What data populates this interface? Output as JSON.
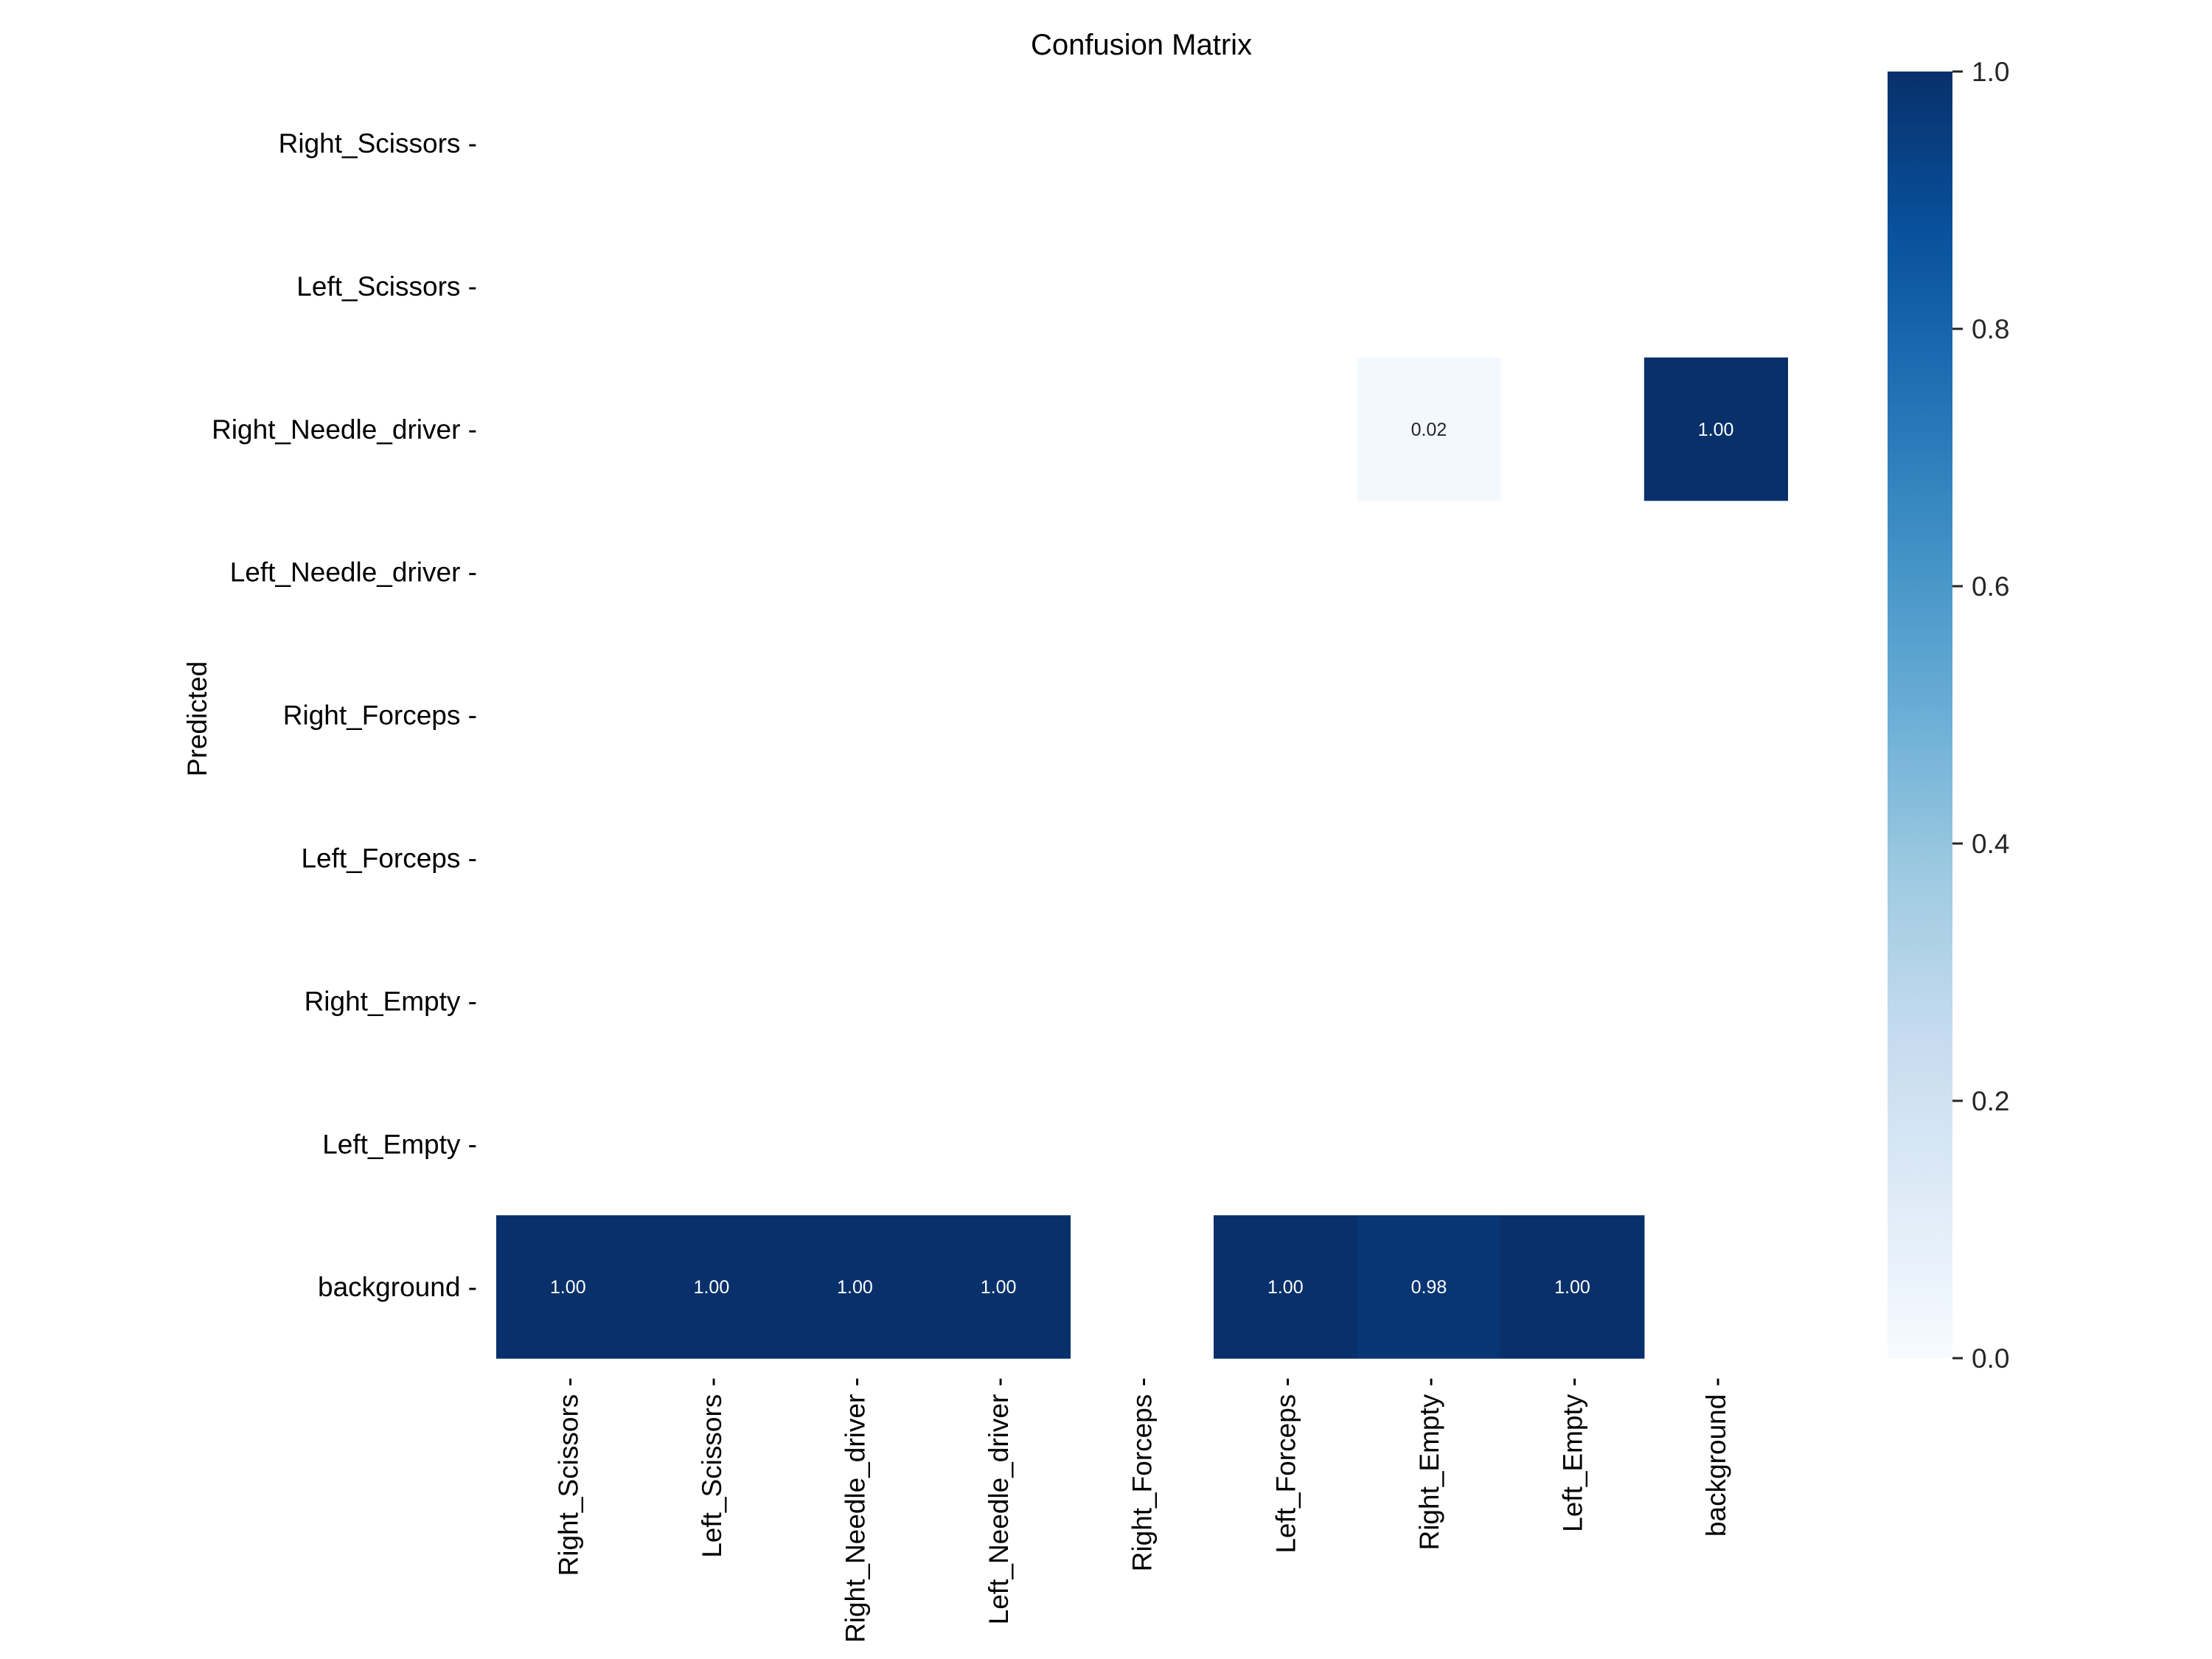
{
  "chart_data": {
    "type": "heatmap",
    "title": "Confusion Matrix",
    "ylabel": "Predicted",
    "xlabel": "",
    "x_categories": [
      "Right_Scissors",
      "Left_Scissors",
      "Right_Needle_driver",
      "Left_Needle_driver",
      "Right_Forceps",
      "Left_Forceps",
      "Right_Empty",
      "Left_Empty",
      "background"
    ],
    "y_categories": [
      "Right_Scissors",
      "Left_Scissors",
      "Right_Needle_driver",
      "Left_Needle_driver",
      "Right_Forceps",
      "Left_Forceps",
      "Right_Empty",
      "Left_Empty",
      "background"
    ],
    "values": [
      [
        null,
        null,
        null,
        null,
        null,
        null,
        null,
        null,
        null
      ],
      [
        null,
        null,
        null,
        null,
        null,
        null,
        null,
        null,
        null
      ],
      [
        null,
        null,
        null,
        null,
        null,
        null,
        0.02,
        null,
        1.0
      ],
      [
        null,
        null,
        null,
        null,
        null,
        null,
        null,
        null,
        null
      ],
      [
        null,
        null,
        null,
        null,
        null,
        null,
        null,
        null,
        null
      ],
      [
        null,
        null,
        null,
        null,
        null,
        null,
        null,
        null,
        null
      ],
      [
        null,
        null,
        null,
        null,
        null,
        null,
        null,
        null,
        null
      ],
      [
        null,
        null,
        null,
        null,
        null,
        null,
        null,
        null,
        null
      ],
      [
        1.0,
        1.0,
        1.0,
        1.0,
        null,
        1.0,
        0.98,
        1.0,
        null
      ]
    ],
    "value_format": "0.00",
    "colormap": "Blues",
    "colorbar": {
      "range": [
        0.0,
        1.0
      ],
      "ticks": [
        "0.0",
        "0.2",
        "0.4",
        "0.6",
        "0.8",
        "1.0"
      ]
    },
    "colors": {
      "low": "#f7fbff",
      "high": "#08306b"
    },
    "grid": false,
    "colorbar_position": "right"
  }
}
